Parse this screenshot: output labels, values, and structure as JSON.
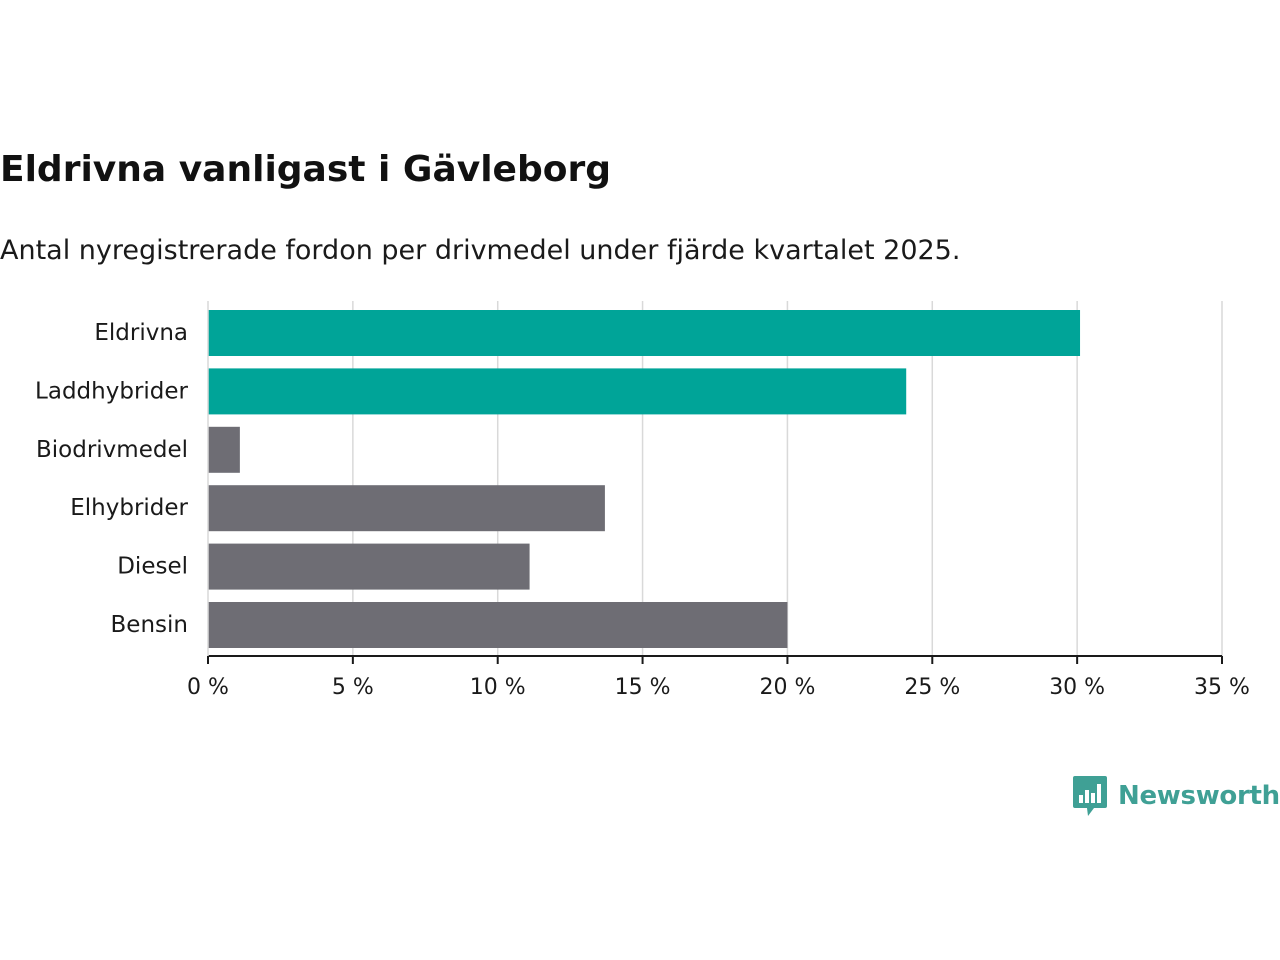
{
  "chart_data": {
    "type": "bar",
    "orientation": "horizontal",
    "title": "Eldrivna vanligast i Gävleborg",
    "subtitle": "Antal nyregistrerade fordon per drivmedel under fjärde kvartalet 2025.",
    "categories": [
      "Eldrivna",
      "Laddhybrider",
      "Biodrivmedel",
      "Elhybrider",
      "Diesel",
      "Bensin"
    ],
    "values": [
      30.1,
      24.1,
      1.1,
      13.7,
      11.1,
      20.0
    ],
    "bar_colors": [
      "#00a498",
      "#00a498",
      "#6e6d74",
      "#6e6d74",
      "#6e6d74",
      "#6e6d74"
    ],
    "xlim": [
      0,
      35
    ],
    "x_ticks": [
      0,
      5,
      10,
      15,
      20,
      25,
      30,
      35
    ],
    "x_tick_labels": [
      "0 %",
      "5 %",
      "10 %",
      "15 %",
      "20 %",
      "25 %",
      "30 %",
      "35 %"
    ],
    "xlabel": "",
    "ylabel": "",
    "grid": true,
    "gridline_color": "#d9d9d9",
    "axis_color": "#1a1a1a"
  },
  "brand": {
    "name": "Newsworthy",
    "icon": "bar-chart-speech-bubble-icon",
    "color": "#3fa095"
  }
}
